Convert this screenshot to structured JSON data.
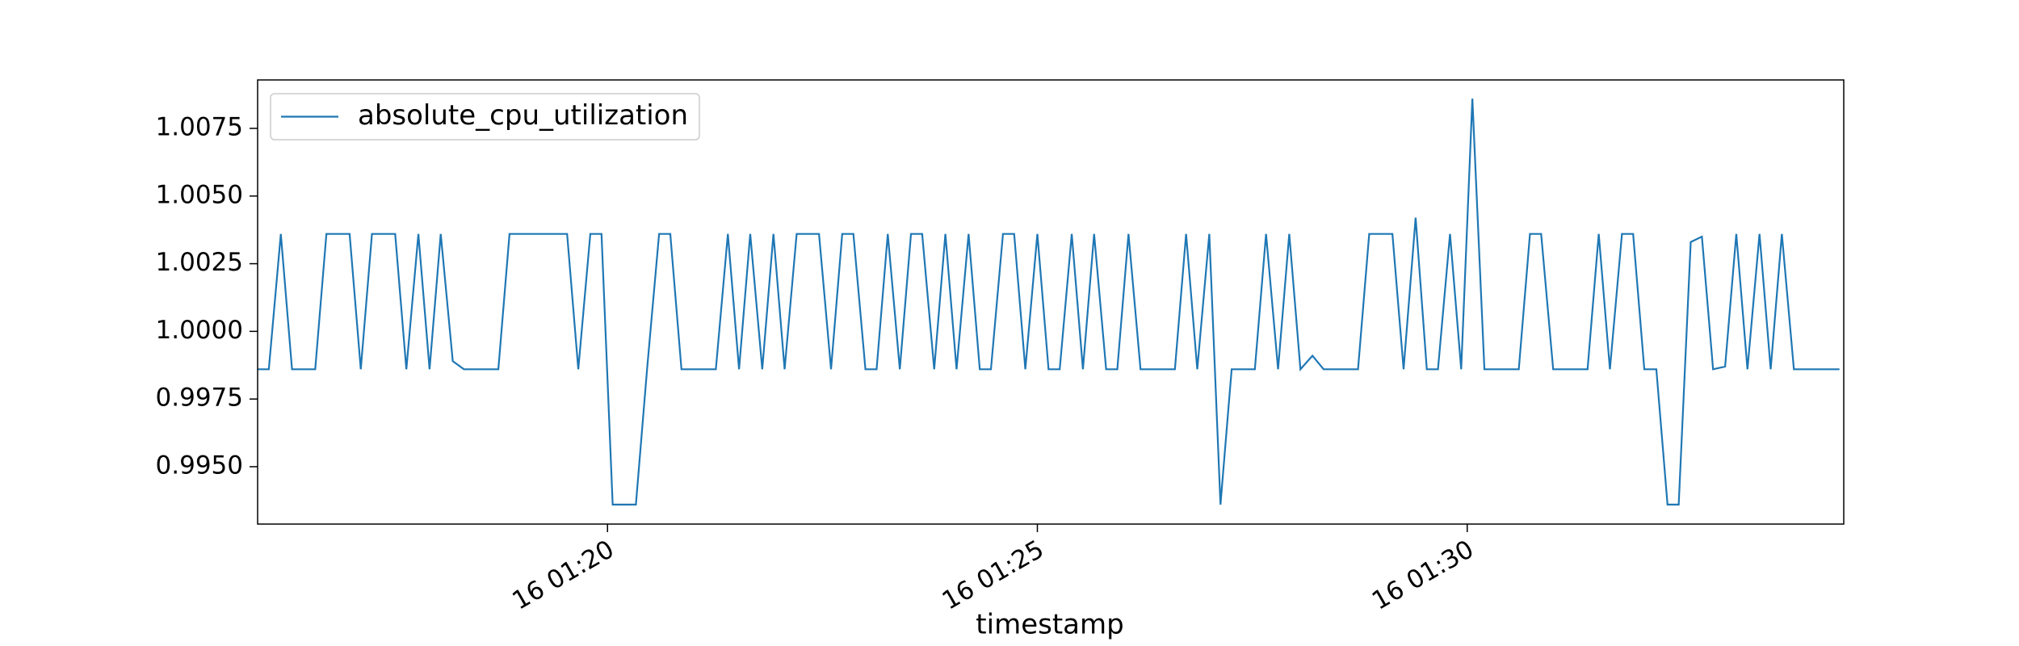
{
  "chart_data": {
    "type": "line",
    "xlabel": "timestamp",
    "x": [
      15.93,
      16.06,
      16.2,
      16.33,
      16.46,
      16.6,
      16.73,
      16.86,
      17.0,
      17.13,
      17.26,
      17.4,
      17.53,
      17.66,
      17.8,
      17.93,
      18.06,
      18.2,
      18.33,
      18.46,
      18.6,
      18.73,
      18.86,
      19.0,
      19.13,
      19.26,
      19.4,
      19.53,
      19.66,
      19.8,
      19.93,
      20.06,
      20.2,
      20.33,
      20.46,
      20.6,
      20.73,
      20.86,
      21.0,
      21.13,
      21.26,
      21.4,
      21.53,
      21.66,
      21.8,
      21.93,
      22.06,
      22.2,
      22.33,
      22.46,
      22.6,
      22.73,
      22.86,
      23.0,
      23.13,
      23.26,
      23.4,
      23.53,
      23.66,
      23.8,
      23.93,
      24.06,
      24.2,
      24.33,
      24.46,
      24.6,
      24.73,
      24.86,
      25.0,
      25.13,
      25.26,
      25.4,
      25.53,
      25.66,
      25.8,
      25.93,
      26.06,
      26.2,
      26.33,
      26.46,
      26.6,
      26.73,
      26.86,
      27.0,
      27.13,
      27.26,
      27.4,
      27.53,
      27.66,
      27.8,
      27.93,
      28.06,
      28.2,
      28.33,
      28.46,
      28.6,
      28.73,
      28.86,
      29.0,
      29.13,
      29.26,
      29.4,
      29.53,
      29.66,
      29.8,
      29.93,
      30.06,
      30.2,
      30.33,
      30.46,
      30.6,
      30.73,
      30.86,
      31.0,
      31.13,
      31.26,
      31.4,
      31.53,
      31.66,
      31.8,
      31.93,
      32.06,
      32.2,
      32.33,
      32.46,
      32.6,
      32.73,
      32.86,
      33.0,
      33.13,
      33.26,
      33.4,
      33.53,
      33.66,
      33.8,
      33.93,
      34.06,
      34.2,
      34.33
    ],
    "series": [
      {
        "name": "absolute_cpu_utilization",
        "color": "#1f77b4",
        "values": [
          0.9986,
          0.9986,
          1.0036,
          0.9986,
          0.9986,
          0.9986,
          1.0036,
          1.0036,
          1.0036,
          0.9986,
          1.0036,
          1.0036,
          1.0036,
          0.9986,
          1.0036,
          0.9986,
          1.0036,
          0.9989,
          0.9986,
          0.9986,
          0.9986,
          0.9986,
          1.0036,
          1.0036,
          1.0036,
          1.0036,
          1.0036,
          1.0036,
          0.9986,
          1.0036,
          1.0036,
          0.9936,
          0.9936,
          0.9936,
          0.9986,
          1.0036,
          1.0036,
          0.9986,
          0.9986,
          0.9986,
          0.9986,
          1.0036,
          0.9986,
          1.0036,
          0.9986,
          1.0036,
          0.9986,
          1.0036,
          1.0036,
          1.0036,
          0.9986,
          1.0036,
          1.0036,
          0.9986,
          0.9986,
          1.0036,
          0.9986,
          1.0036,
          1.0036,
          0.9986,
          1.0036,
          0.9986,
          1.0036,
          0.9986,
          0.9986,
          1.0036,
          1.0036,
          0.9986,
          1.0036,
          0.9986,
          0.9986,
          1.0036,
          0.9986,
          1.0036,
          0.9986,
          0.9986,
          1.0036,
          0.9986,
          0.9986,
          0.9986,
          0.9986,
          1.0036,
          0.9986,
          1.0036,
          0.9936,
          0.9986,
          0.9986,
          0.9986,
          1.0036,
          0.9986,
          1.0036,
          0.9986,
          0.9991,
          0.9986,
          0.9986,
          0.9986,
          0.9986,
          1.0036,
          1.0036,
          1.0036,
          0.9986,
          1.0042,
          0.9986,
          0.9986,
          1.0036,
          0.9986,
          1.0086,
          0.9986,
          0.9986,
          0.9986,
          0.9986,
          1.0036,
          1.0036,
          0.9986,
          0.9986,
          0.9986,
          0.9986,
          1.0036,
          0.9986,
          1.0036,
          1.0036,
          0.9986,
          0.9986,
          0.9936,
          0.9936,
          1.0033,
          1.0035,
          0.9986,
          0.9987,
          1.0036,
          0.9986,
          1.0036,
          0.9986,
          1.0036,
          0.9986,
          0.9986,
          0.9986,
          0.9986,
          0.9986
        ]
      }
    ],
    "xlim": [
      15.93,
      34.38
    ],
    "ylim": [
      0.99288,
      1.00929
    ],
    "xticks": [
      {
        "value": 20,
        "label": "16 01:20"
      },
      {
        "value": 25,
        "label": "16 01:25"
      },
      {
        "value": 30,
        "label": "16 01:30"
      }
    ],
    "yticks": [
      {
        "value": 0.995,
        "label": "0.9950"
      },
      {
        "value": 0.9975,
        "label": "0.9975"
      },
      {
        "value": 1.0,
        "label": "1.0000"
      },
      {
        "value": 1.0025,
        "label": "1.0025"
      },
      {
        "value": 1.005,
        "label": "1.0050"
      },
      {
        "value": 1.0075,
        "label": "1.0075"
      }
    ],
    "grid": false,
    "legend": "upper left"
  }
}
